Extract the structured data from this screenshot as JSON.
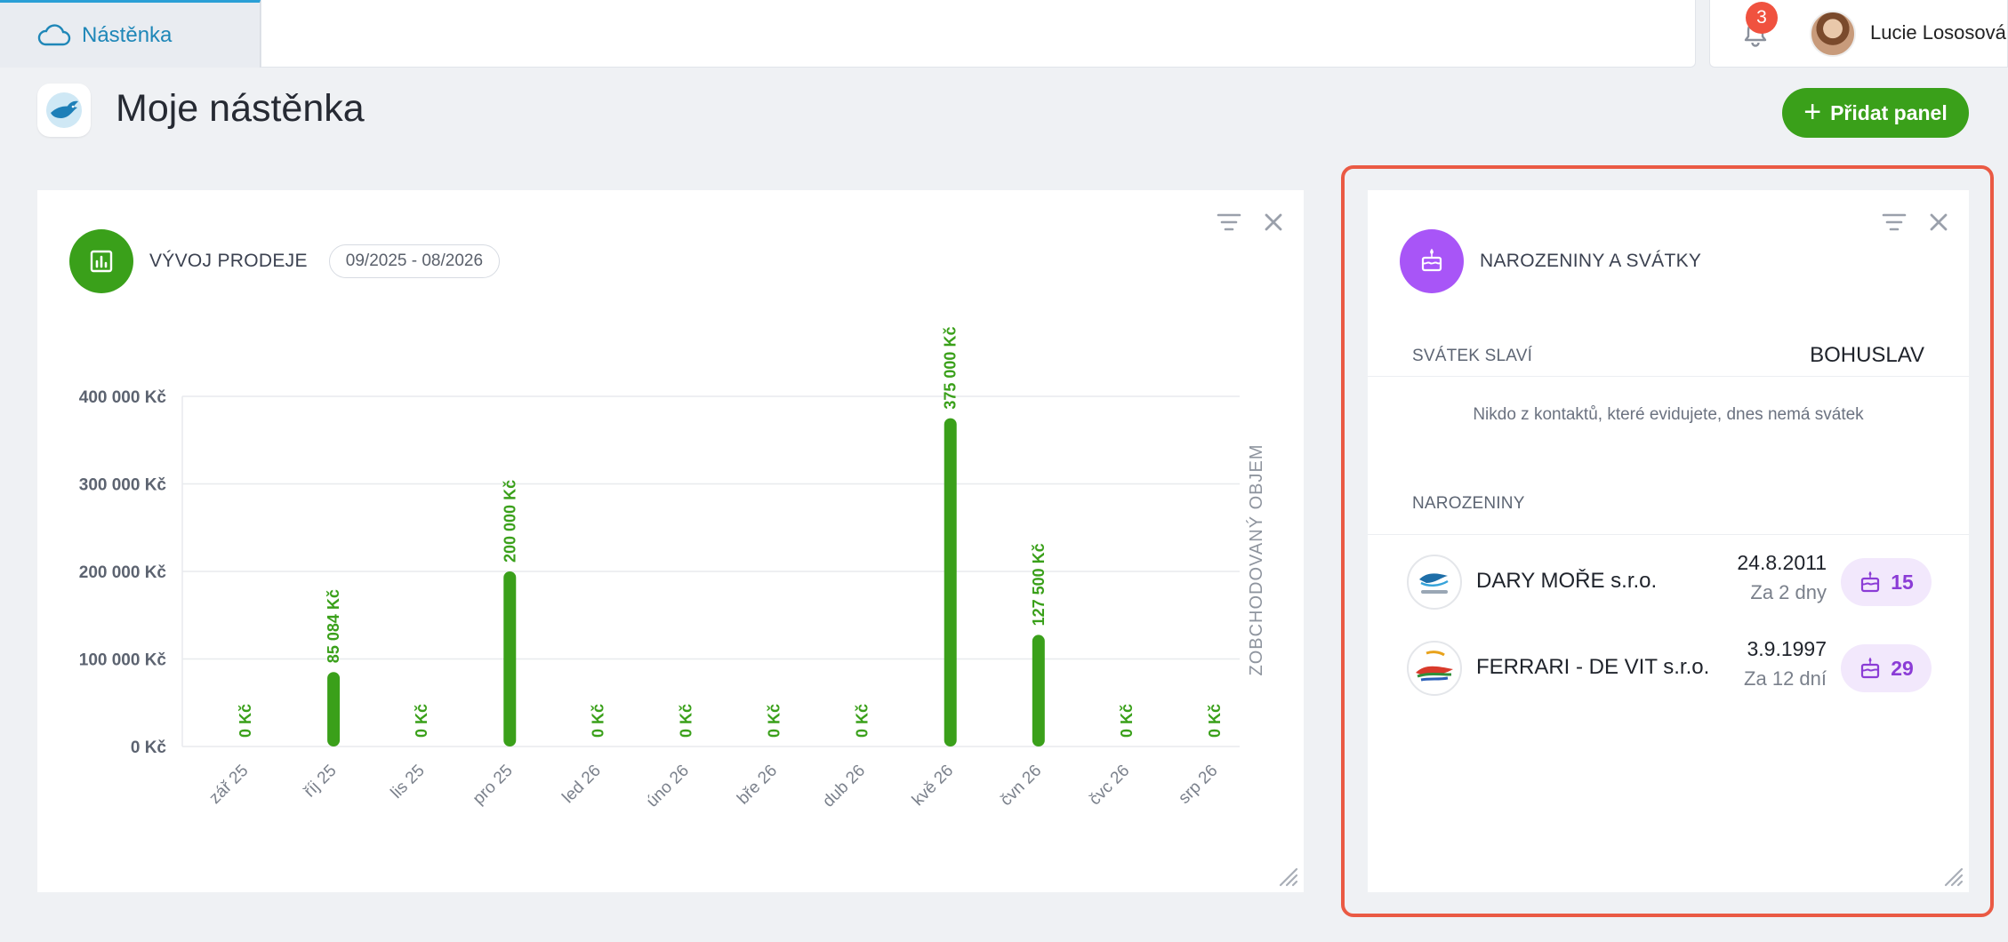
{
  "topbar": {
    "tab_label": "Nástěnka",
    "notification_count": "3",
    "user_name": "Lucie Lososová"
  },
  "header": {
    "title": "Moje nástěnka",
    "add_panel_label": "Přidat panel"
  },
  "sales_panel": {
    "heading": "VÝVOJ PRODEJE",
    "range": "09/2025 - 08/2026"
  },
  "chart_data": {
    "type": "bar",
    "categories": [
      "zář 25",
      "říj 25",
      "lis 25",
      "pro 25",
      "led 26",
      "úno 26",
      "bře 26",
      "dub 26",
      "kvě 26",
      "čvn 26",
      "čvc 26",
      "srp 26"
    ],
    "values": [
      0,
      85084,
      0,
      200000,
      0,
      0,
      0,
      0,
      375000,
      127500,
      0,
      0
    ],
    "data_labels": [
      "0 Kč",
      "85 084 Kč",
      "0 Kč",
      "200 000 Kč",
      "0 Kč",
      "0 Kč",
      "0 Kč",
      "0 Kč",
      "375 000 Kč",
      "127 500 Kč",
      "0 Kč",
      "0 Kč"
    ],
    "yticks": [
      "0 Kč",
      "100 000 Kč",
      "200 000 Kč",
      "300 000 Kč",
      "400 000 Kč"
    ],
    "ytick_values": [
      0,
      100000,
      200000,
      300000,
      400000
    ],
    "ylim": [
      0,
      400000
    ],
    "ylabel_right": "ZOBCHODOVANÝ OBJEM",
    "color": "#3aa01a",
    "grid": true
  },
  "bday_panel": {
    "heading": "NAROZENINY A SVÁTKY",
    "name_day_label": "SVÁTEK SLAVÍ",
    "name_day_value": "BOHUSLAV",
    "empty_message": "Nikdo z kontaktů, které evidujete, dnes nemá svátek",
    "birthdays_label": "NAROZENINY",
    "contacts": [
      {
        "name": "DARY MOŘE s.r.o.",
        "date": "24.8.2011",
        "relative": "Za 2 dny",
        "age": "15"
      },
      {
        "name": "FERRARI - DE VIT s.r.o.",
        "date": "3.9.1997",
        "relative": "Za 12 dní",
        "age": "29"
      }
    ]
  },
  "colors": {
    "accent_green": "#3aa01a",
    "accent_purple": "#a855f7",
    "highlight_frame": "#ea5a44",
    "tab_blue": "#1f87b8"
  }
}
